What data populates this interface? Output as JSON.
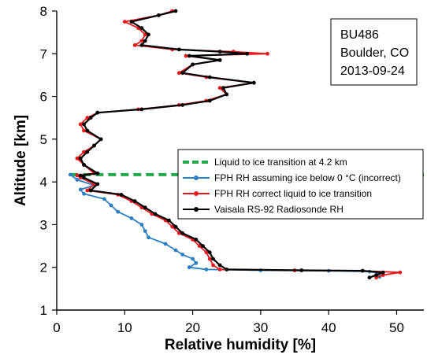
{
  "chart_data": {
    "type": "line",
    "xlabel": "Relative humidity [%]",
    "ylabel": "Altitude [km]",
    "xlim": [
      0,
      54
    ],
    "ylim": [
      1,
      8
    ],
    "xticks": [
      "0",
      "10",
      "20",
      "30",
      "40",
      "50"
    ],
    "yticks": [
      "1",
      "2",
      "3",
      "4",
      "5",
      "6",
      "7",
      "8"
    ],
    "grid": false,
    "legend_position": "center-right",
    "annotation": {
      "lines": [
        "BU486",
        "Boulder, CO",
        "2013-09-24"
      ]
    },
    "series": [
      {
        "name": "Liquid to ice transition at 4.2 km",
        "color": "#22a84a",
        "style": "dashed",
        "points": [
          [
            2,
            4.17
          ],
          [
            54,
            4.17
          ]
        ]
      },
      {
        "name": "FPH RH assuming ice below 0 °C (incorrect)",
        "color": "#2a7fc3",
        "style": "line-markers",
        "points": [
          [
            2.0,
            4.17
          ],
          [
            3.0,
            4.05
          ],
          [
            5.5,
            3.92
          ],
          [
            3.5,
            3.82
          ],
          [
            4.0,
            3.72
          ],
          [
            7.0,
            3.6
          ],
          [
            8.0,
            3.45
          ],
          [
            9.0,
            3.3
          ],
          [
            11.0,
            3.15
          ],
          [
            12.5,
            3.0
          ],
          [
            13.0,
            2.85
          ],
          [
            13.5,
            2.7
          ],
          [
            16.0,
            2.55
          ],
          [
            17.5,
            2.4
          ],
          [
            18.5,
            2.3
          ],
          [
            20.0,
            2.2
          ],
          [
            20.5,
            2.1
          ],
          [
            19.5,
            2.0
          ],
          [
            22.0,
            1.95
          ],
          [
            30.0,
            1.93
          ],
          [
            40.0,
            1.92
          ],
          [
            46.0,
            1.9
          ],
          [
            48.0,
            1.85
          ],
          [
            47.5,
            1.78
          ]
        ]
      },
      {
        "name": "FPH RH correct liquid to ice transition",
        "color": "#e8191c",
        "style": "line-markers",
        "points": [
          [
            17.0,
            8.0
          ],
          [
            15.0,
            7.9
          ],
          [
            10.0,
            7.75
          ],
          [
            12.0,
            7.6
          ],
          [
            13.0,
            7.45
          ],
          [
            12.5,
            7.3
          ],
          [
            11.5,
            7.2
          ],
          [
            17.0,
            7.1
          ],
          [
            26.0,
            7.05
          ],
          [
            31.0,
            7.0
          ],
          [
            19.0,
            6.95
          ],
          [
            24.0,
            6.85
          ],
          [
            20.0,
            6.75
          ],
          [
            18.0,
            6.55
          ],
          [
            22.0,
            6.45
          ],
          [
            29.0,
            6.32
          ],
          [
            24.0,
            6.2
          ],
          [
            25.0,
            6.05
          ],
          [
            22.0,
            5.9
          ],
          [
            18.0,
            5.8
          ],
          [
            12.0,
            5.7
          ],
          [
            6.0,
            5.62
          ],
          [
            4.5,
            5.5
          ],
          [
            3.5,
            5.35
          ],
          [
            4.0,
            5.2
          ],
          [
            6.5,
            5.0
          ],
          [
            5.5,
            4.85
          ],
          [
            4.0,
            4.7
          ],
          [
            3.0,
            4.55
          ],
          [
            4.0,
            4.4
          ],
          [
            5.5,
            4.2
          ],
          [
            3.0,
            4.15
          ],
          [
            3.5,
            4.1
          ],
          [
            5.5,
            3.95
          ],
          [
            4.5,
            3.8
          ],
          [
            9.0,
            3.7
          ],
          [
            11.0,
            3.55
          ],
          [
            12.5,
            3.4
          ],
          [
            14.0,
            3.25
          ],
          [
            16.0,
            3.1
          ],
          [
            17.0,
            2.95
          ],
          [
            18.0,
            2.8
          ],
          [
            20.0,
            2.65
          ],
          [
            21.0,
            2.5
          ],
          [
            22.0,
            2.35
          ],
          [
            22.5,
            2.2
          ],
          [
            23.0,
            2.05
          ],
          [
            24.0,
            1.95
          ],
          [
            35.0,
            1.93
          ],
          [
            45.0,
            1.92
          ],
          [
            50.5,
            1.88
          ],
          [
            48.0,
            1.82
          ],
          [
            47.0,
            1.76
          ]
        ]
      },
      {
        "name": "Vaisala RS-92 Radiosonde RH",
        "color": "#000000",
        "style": "line-markers",
        "points": [
          [
            17.5,
            8.0
          ],
          [
            15.0,
            7.9
          ],
          [
            11.0,
            7.75
          ],
          [
            12.5,
            7.6
          ],
          [
            13.5,
            7.45
          ],
          [
            13.0,
            7.3
          ],
          [
            12.5,
            7.2
          ],
          [
            18.0,
            7.1
          ],
          [
            24.0,
            7.05
          ],
          [
            28.0,
            7.0
          ],
          [
            19.5,
            6.95
          ],
          [
            24.0,
            6.85
          ],
          [
            20.0,
            6.75
          ],
          [
            18.5,
            6.55
          ],
          [
            22.5,
            6.45
          ],
          [
            29.0,
            6.32
          ],
          [
            24.5,
            6.2
          ],
          [
            25.0,
            6.05
          ],
          [
            22.5,
            5.9
          ],
          [
            18.5,
            5.8
          ],
          [
            12.5,
            5.7
          ],
          [
            6.0,
            5.62
          ],
          [
            5.0,
            5.5
          ],
          [
            4.0,
            5.35
          ],
          [
            4.5,
            5.2
          ],
          [
            6.5,
            5.0
          ],
          [
            5.5,
            4.85
          ],
          [
            4.5,
            4.7
          ],
          [
            3.5,
            4.55
          ],
          [
            4.0,
            4.4
          ],
          [
            6.0,
            4.2
          ],
          [
            3.5,
            4.15
          ],
          [
            4.0,
            4.1
          ],
          [
            6.0,
            3.95
          ],
          [
            5.0,
            3.8
          ],
          [
            9.5,
            3.7
          ],
          [
            11.5,
            3.55
          ],
          [
            13.0,
            3.4
          ],
          [
            14.5,
            3.25
          ],
          [
            16.5,
            3.1
          ],
          [
            17.5,
            2.95
          ],
          [
            18.5,
            2.8
          ],
          [
            20.5,
            2.65
          ],
          [
            21.5,
            2.5
          ],
          [
            22.5,
            2.35
          ],
          [
            23.0,
            2.2
          ],
          [
            24.0,
            2.05
          ],
          [
            25.0,
            1.95
          ],
          [
            36.0,
            1.93
          ],
          [
            45.0,
            1.92
          ],
          [
            48.0,
            1.88
          ],
          [
            47.0,
            1.82
          ],
          [
            46.0,
            1.76
          ]
        ]
      }
    ]
  }
}
